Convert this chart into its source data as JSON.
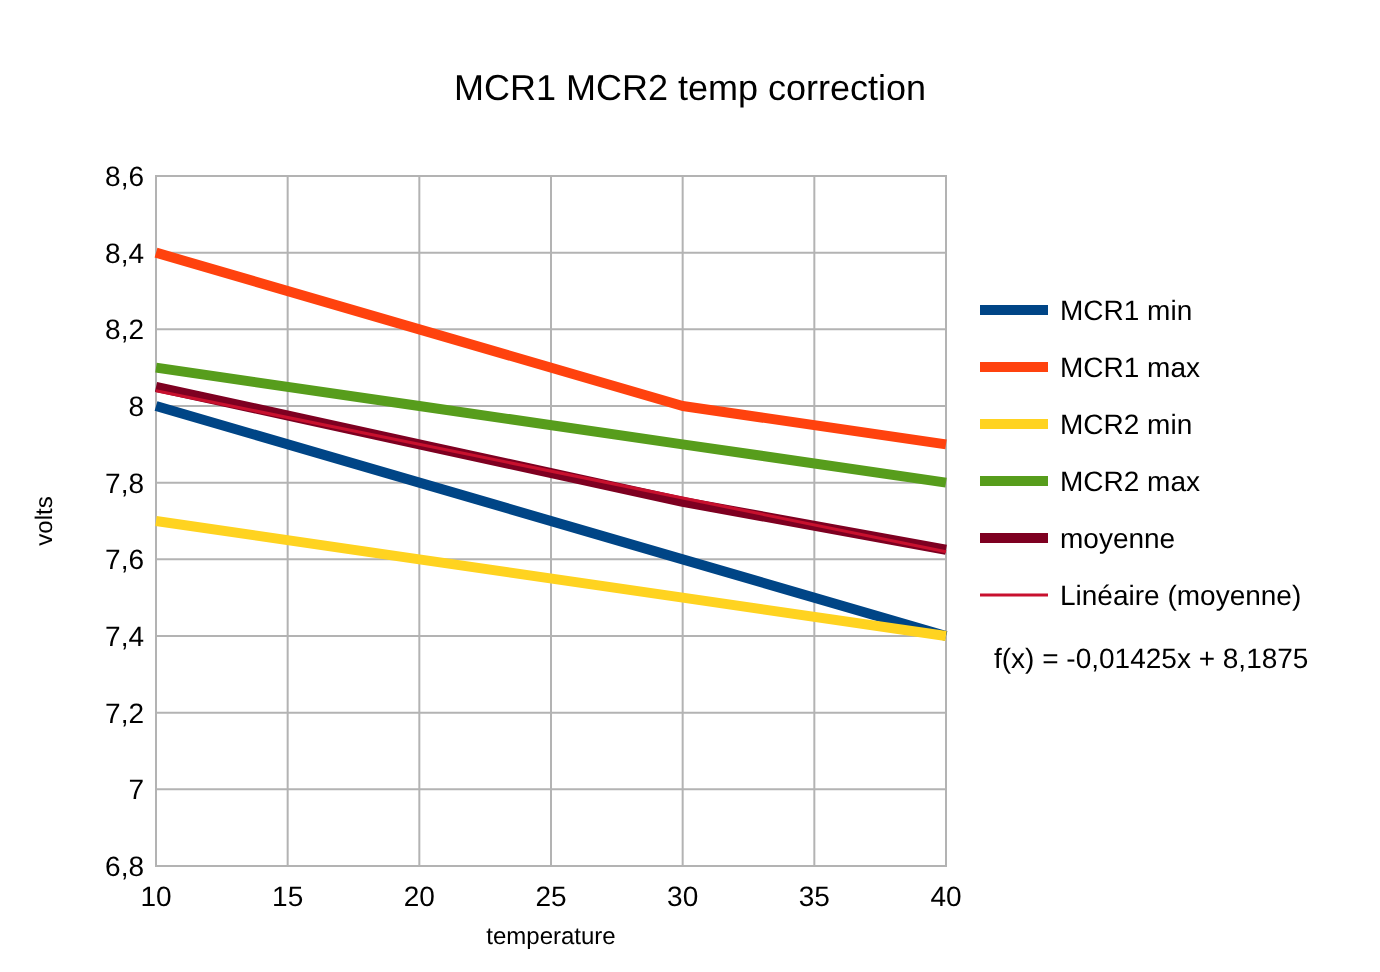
{
  "chart_data": {
    "type": "line",
    "title": "MCR1 MCR2 temp correction",
    "xlabel": "temperature",
    "ylabel": "volts",
    "x": [
      10,
      20,
      30,
      40
    ],
    "series": [
      {
        "name": "MCR1 min",
        "color": "#004586",
        "values": [
          8.0,
          7.8,
          7.6,
          7.4
        ]
      },
      {
        "name": "MCR1 max",
        "color": "#ff420e",
        "values": [
          8.4,
          8.2,
          8.0,
          7.9
        ]
      },
      {
        "name": "MCR2 min",
        "color": "#ffd320",
        "values": [
          7.7,
          7.6,
          7.5,
          7.4
        ]
      },
      {
        "name": "MCR2 max",
        "color": "#579d1c",
        "values": [
          8.1,
          8.0,
          7.9,
          7.8
        ]
      },
      {
        "name": "moyenne",
        "color": "#7e0021",
        "values": [
          8.05,
          7.9,
          7.75,
          7.625
        ]
      },
      {
        "name": "Linéaire (moyenne)",
        "color": "#c8102e",
        "x": [
          10,
          40
        ],
        "values": [
          8.04,
          7.62
        ]
      }
    ],
    "xlim": [
      10,
      40
    ],
    "xticks": [
      10,
      15,
      20,
      25,
      30,
      35,
      40
    ],
    "ylim": [
      6.8,
      8.6
    ],
    "yticks": [
      {
        "value": 6.8,
        "label": "6,8"
      },
      7,
      {
        "value": 7.2,
        "label": "7,2"
      },
      {
        "value": 7.4,
        "label": "7,4"
      },
      {
        "value": 7.6,
        "label": "7,6"
      },
      {
        "value": 7.8,
        "label": "7,8"
      },
      8,
      {
        "value": 8.2,
        "label": "8,2"
      },
      {
        "value": 8.4,
        "label": "8,4"
      },
      {
        "value": 8.6,
        "label": "8,6"
      }
    ],
    "grid": true,
    "legend": "right",
    "line_style": "solid",
    "annotations": [
      "f(x) = -0,01425x + 8,1875"
    ]
  }
}
